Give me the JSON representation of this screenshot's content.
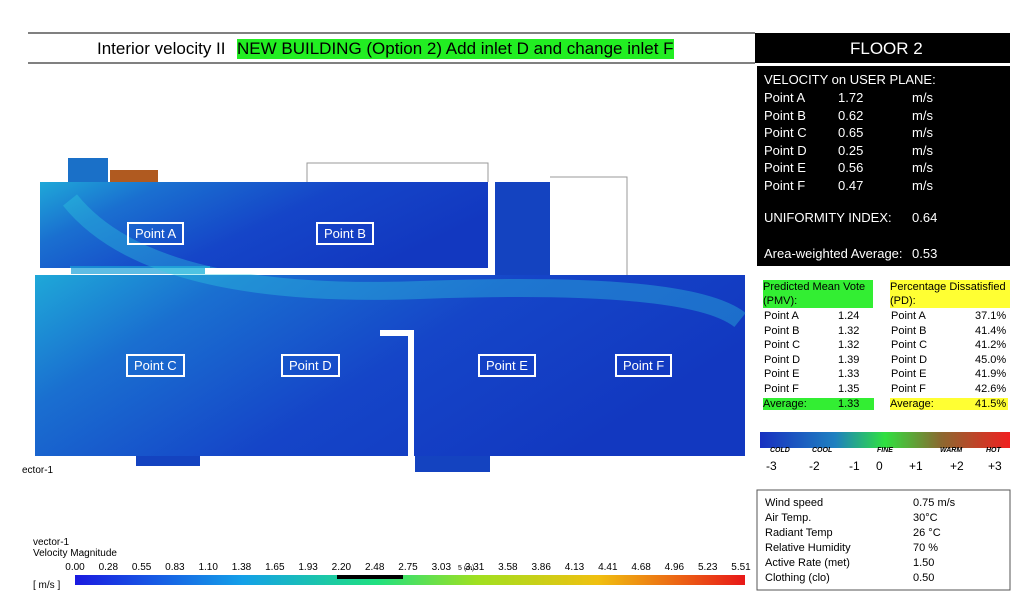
{
  "header": {
    "title": "Interior velocity II",
    "highlight": "NEW BUILDING (Option 2) Add inlet D and change inlet F",
    "floor": "FLOOR 2"
  },
  "velocity": {
    "heading": "VELOCITY on USER PLANE:",
    "rows": [
      [
        "Point A",
        "1.72",
        "m/s"
      ],
      [
        "Point B",
        "0.62",
        "m/s"
      ],
      [
        "Point C",
        "0.65",
        "m/s"
      ],
      [
        "Point D",
        "0.25",
        "m/s"
      ],
      [
        "Point E",
        "0.56",
        "m/s"
      ],
      [
        "Point F",
        "0.47",
        "m/s"
      ]
    ],
    "uniformity": {
      "label": "UNIFORMITY INDEX:",
      "value": "0.64"
    },
    "average": {
      "label": "Area-weighted Average:",
      "value": "0.53"
    }
  },
  "pmv": {
    "heading": "Predicted Mean Vote (PMV):",
    "rows": [
      [
        "Point A",
        "1.24"
      ],
      [
        "Point B",
        "1.32"
      ],
      [
        "Point C",
        "1.32"
      ],
      [
        "Point D",
        "1.39"
      ],
      [
        "Point E",
        "1.33"
      ],
      [
        "Point F",
        "1.35"
      ]
    ],
    "average": [
      "Average:",
      "1.33"
    ]
  },
  "pd": {
    "heading": "Percentage Dissatisfied (PD):",
    "rows": [
      [
        "Point A",
        "37.1%"
      ],
      [
        "Point B",
        "41.4%"
      ],
      [
        "Point C",
        "41.2%"
      ],
      [
        "Point D",
        "45.0%"
      ],
      [
        "Point E",
        "41.9%"
      ],
      [
        "Point F",
        "42.6%"
      ]
    ],
    "average": [
      "Average:",
      "41.5%"
    ]
  },
  "thermal_scale": {
    "words": [
      "COLD",
      "COOL",
      "FINE",
      "WARM",
      "HOT"
    ],
    "numbers": [
      "-3",
      "-2",
      "-1",
      "0",
      "+1",
      "+2",
      "+3"
    ]
  },
  "conditions": [
    [
      "Wind speed",
      "0.75 m/s"
    ],
    [
      "Air Temp.",
      "30°C"
    ],
    [
      "Radiant Temp",
      "26 °C"
    ],
    [
      "Relative Humidity",
      "70 %"
    ],
    [
      "Active Rate (met)",
      "1.50"
    ],
    [
      "Clothing (clo)",
      "0.50"
    ]
  ],
  "plan": {
    "points": [
      "Point A",
      "Point B",
      "Point C",
      "Point D",
      "Point E",
      "Point F"
    ],
    "side_label": "ector-1",
    "legend_title": "vector-1",
    "legend_subtitle": "Velocity Magnitude",
    "unit": "[ m/s ]",
    "scale_text": "5 (m)",
    "ticks": [
      "0.00",
      "0.28",
      "0.55",
      "0.83",
      "1.10",
      "1.38",
      "1.65",
      "1.93",
      "2.20",
      "2.48",
      "2.75",
      "3.03",
      "3.31",
      "3.58",
      "3.86",
      "4.13",
      "4.41",
      "4.68",
      "4.96",
      "5.23",
      "5.51"
    ]
  }
}
